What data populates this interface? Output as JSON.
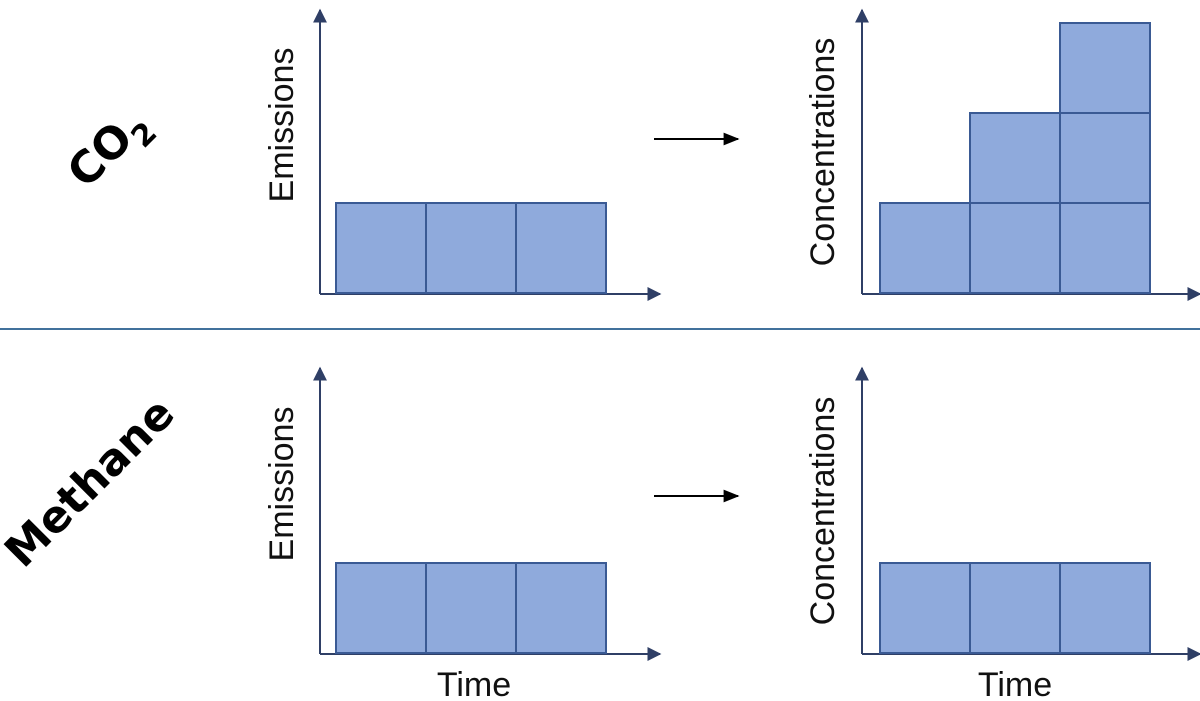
{
  "rows": [
    {
      "label": "CO",
      "label_subscript": "2",
      "left_chart": {
        "ylabel": "Emissions",
        "xlabel": "",
        "blocks": [
          1,
          1,
          1
        ]
      },
      "right_chart": {
        "ylabel": "Concentrations",
        "xlabel": "",
        "blocks": [
          1,
          2,
          3
        ]
      }
    },
    {
      "label": "Methane",
      "label_subscript": "",
      "left_chart": {
        "ylabel": "Emissions",
        "xlabel": "Time",
        "blocks": [
          1,
          1,
          1
        ]
      },
      "right_chart": {
        "ylabel": "Concentrations",
        "xlabel": "Time",
        "blocks": [
          1,
          1,
          1
        ]
      }
    }
  ],
  "colors": {
    "block_fill": "#8faadc",
    "block_stroke": "#3a5a94",
    "axis": "#2f3f66",
    "divider": "#41719c"
  }
}
